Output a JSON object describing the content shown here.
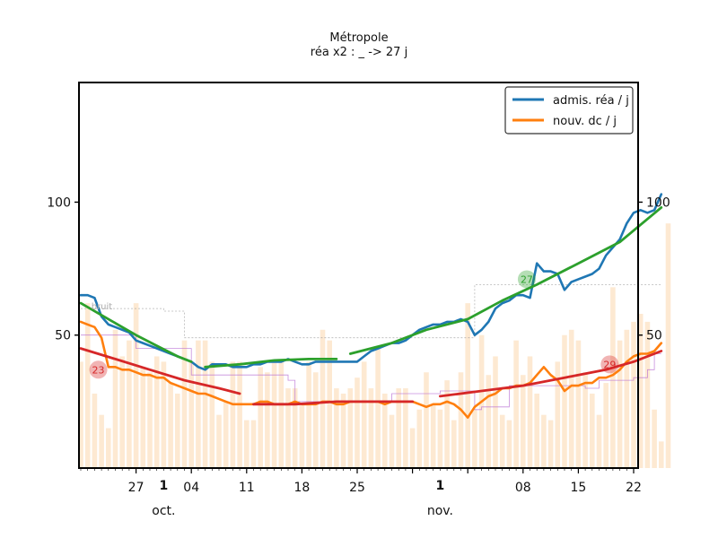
{
  "chart_data": {
    "type": "line",
    "title": "Métropole",
    "subtitle": "réa x2 : _ -> 27 j",
    "ylim": [
      0,
      145
    ],
    "yticks": [
      50,
      100
    ],
    "ytick_labels": [
      "50",
      "100"
    ],
    "xtick_labels": [
      "27",
      "04",
      "11",
      "18",
      "25",
      "08",
      "15",
      "22"
    ],
    "month_labels": [
      "oct.",
      "nov."
    ],
    "month_marks": [
      "1",
      "1"
    ],
    "legend": {
      "placement": "top-right",
      "entries": [
        {
          "label": "admis. réa / j",
          "color": "#1f77b4"
        },
        {
          "label": "nouv. dc / j",
          "color": "#ff7f0e"
        }
      ]
    },
    "annotations": [
      {
        "text": "bruit",
        "color": "#aaaaaa",
        "x": 1,
        "y": 61
      },
      {
        "text": "23",
        "color": "#d62728",
        "x": 1.5,
        "y": 37
      },
      {
        "text": "27",
        "color": "#2ca02c",
        "x": 63.5,
        "y": 71
      },
      {
        "text": "29",
        "color": "#d62728",
        "x": 75.5,
        "y": 39
      }
    ],
    "bars": {
      "color": "#fde9d2",
      "values": [
        40,
        62,
        28,
        20,
        15,
        52,
        42,
        48,
        62,
        38,
        36,
        42,
        40,
        32,
        28,
        48,
        40,
        48,
        48,
        40,
        20,
        25,
        40,
        40,
        18,
        18,
        38,
        36,
        40,
        40,
        30,
        30,
        24,
        40,
        36,
        52,
        48,
        30,
        28,
        30,
        34,
        40,
        30,
        45,
        28,
        20,
        30,
        30,
        15,
        22,
        36,
        24,
        22,
        33,
        18,
        36,
        62,
        22,
        50,
        35,
        42,
        20,
        18,
        48,
        35,
        42,
        28,
        20,
        18,
        40,
        50,
        52,
        48,
        36,
        28,
        20,
        32,
        68,
        48,
        52,
        55,
        58,
        55,
        22,
        10,
        92
      ]
    },
    "series": [
      {
        "name": "admis. réa / j",
        "color": "#1f77b4",
        "points": [
          [
            0,
            65
          ],
          [
            1,
            65
          ],
          [
            2,
            64
          ],
          [
            3,
            57
          ],
          [
            4,
            54
          ],
          [
            5,
            53
          ],
          [
            6,
            52
          ],
          [
            7,
            51
          ],
          [
            8,
            48
          ],
          [
            9,
            47
          ],
          [
            10,
            46
          ],
          [
            11,
            45
          ],
          [
            12,
            44
          ],
          [
            13,
            43
          ],
          [
            14,
            42
          ],
          [
            15,
            41
          ],
          [
            16,
            40
          ],
          [
            17,
            38
          ],
          [
            18,
            37
          ],
          [
            19,
            39
          ],
          [
            20,
            39
          ],
          [
            21,
            39
          ],
          [
            22,
            38
          ],
          [
            23,
            38
          ],
          [
            24,
            38
          ],
          [
            25,
            39
          ],
          [
            26,
            39
          ],
          [
            27,
            40
          ],
          [
            28,
            40
          ],
          [
            29,
            40
          ],
          [
            30,
            41
          ],
          [
            31,
            40
          ],
          [
            32,
            39
          ],
          [
            33,
            39
          ],
          [
            34,
            40
          ],
          [
            35,
            40
          ],
          [
            36,
            40
          ],
          [
            37,
            40
          ],
          [
            38,
            40
          ],
          [
            39,
            40
          ],
          [
            40,
            40
          ],
          [
            41,
            42
          ],
          [
            42,
            44
          ],
          [
            43,
            45
          ],
          [
            44,
            46
          ],
          [
            45,
            47
          ],
          [
            46,
            47
          ],
          [
            47,
            48
          ],
          [
            48,
            50
          ],
          [
            49,
            52
          ],
          [
            50,
            53
          ],
          [
            51,
            54
          ],
          [
            52,
            54
          ],
          [
            53,
            55
          ],
          [
            54,
            55
          ],
          [
            55,
            56
          ],
          [
            56,
            55
          ],
          [
            57,
            50
          ],
          [
            58,
            52
          ],
          [
            59,
            55
          ],
          [
            60,
            60
          ],
          [
            61,
            62
          ],
          [
            62,
            63
          ],
          [
            63,
            65
          ],
          [
            64,
            65
          ],
          [
            65,
            64
          ],
          [
            66,
            77
          ],
          [
            67,
            74
          ],
          [
            68,
            74
          ],
          [
            69,
            73
          ],
          [
            70,
            67
          ],
          [
            71,
            70
          ],
          [
            72,
            71
          ],
          [
            73,
            72
          ],
          [
            74,
            73
          ],
          [
            75,
            75
          ],
          [
            76,
            80
          ],
          [
            77,
            83
          ],
          [
            78,
            86
          ],
          [
            79,
            92
          ],
          [
            80,
            96
          ],
          [
            81,
            97
          ],
          [
            82,
            96
          ],
          [
            83,
            97
          ],
          [
            84,
            103
          ]
        ]
      },
      {
        "name": "nouv. dc / j",
        "color": "#ff7f0e",
        "points": [
          [
            0,
            55
          ],
          [
            1,
            54
          ],
          [
            2,
            53
          ],
          [
            3,
            49
          ],
          [
            4,
            38
          ],
          [
            5,
            38
          ],
          [
            6,
            37
          ],
          [
            7,
            37
          ],
          [
            8,
            36
          ],
          [
            9,
            35
          ],
          [
            10,
            35
          ],
          [
            11,
            34
          ],
          [
            12,
            34
          ],
          [
            13,
            32
          ],
          [
            14,
            31
          ],
          [
            15,
            30
          ],
          [
            16,
            29
          ],
          [
            17,
            28
          ],
          [
            18,
            28
          ],
          [
            19,
            27
          ],
          [
            20,
            26
          ],
          [
            21,
            25
          ],
          [
            22,
            24
          ],
          [
            23,
            24
          ],
          [
            24,
            24
          ],
          [
            25,
            24
          ],
          [
            26,
            25
          ],
          [
            27,
            25
          ],
          [
            28,
            24
          ],
          [
            29,
            24
          ],
          [
            30,
            24
          ],
          [
            31,
            25
          ],
          [
            32,
            24
          ],
          [
            33,
            24
          ],
          [
            34,
            24
          ],
          [
            35,
            25
          ],
          [
            36,
            25
          ],
          [
            37,
            24
          ],
          [
            38,
            24
          ],
          [
            39,
            25
          ],
          [
            40,
            25
          ],
          [
            41,
            25
          ],
          [
            42,
            25
          ],
          [
            43,
            25
          ],
          [
            44,
            24
          ],
          [
            45,
            25
          ],
          [
            46,
            25
          ],
          [
            47,
            25
          ],
          [
            48,
            25
          ],
          [
            49,
            24
          ],
          [
            50,
            23
          ],
          [
            51,
            24
          ],
          [
            52,
            24
          ],
          [
            53,
            25
          ],
          [
            54,
            24
          ],
          [
            55,
            22
          ],
          [
            56,
            19
          ],
          [
            57,
            23
          ],
          [
            58,
            25
          ],
          [
            59,
            27
          ],
          [
            60,
            28
          ],
          [
            61,
            30
          ],
          [
            62,
            30
          ],
          [
            63,
            31
          ],
          [
            64,
            31
          ],
          [
            65,
            32
          ],
          [
            66,
            35
          ],
          [
            67,
            38
          ],
          [
            68,
            35
          ],
          [
            69,
            33
          ],
          [
            70,
            29
          ],
          [
            71,
            31
          ],
          [
            72,
            31
          ],
          [
            73,
            32
          ],
          [
            74,
            32
          ],
          [
            75,
            34
          ],
          [
            76,
            34
          ],
          [
            77,
            35
          ],
          [
            78,
            37
          ],
          [
            79,
            40
          ],
          [
            80,
            42
          ],
          [
            81,
            43
          ],
          [
            82,
            43
          ],
          [
            83,
            44
          ],
          [
            84,
            47
          ]
        ]
      }
    ],
    "trend_lines": [
      {
        "color": "#2ca02c",
        "points": [
          [
            0,
            62
          ],
          [
            4,
            56
          ],
          [
            8,
            50
          ],
          [
            11,
            46
          ],
          [
            14,
            42
          ],
          [
            16,
            40
          ]
        ]
      },
      {
        "color": "#2ca02c",
        "points": [
          [
            18,
            38
          ],
          [
            23,
            39
          ],
          [
            28,
            40.5
          ],
          [
            33,
            41
          ],
          [
            37,
            41
          ]
        ]
      },
      {
        "color": "#2ca02c",
        "points": [
          [
            39,
            43
          ],
          [
            45,
            47
          ],
          [
            50,
            52
          ],
          [
            56,
            56
          ],
          [
            61,
            63
          ],
          [
            66,
            69
          ],
          [
            72,
            77
          ],
          [
            78,
            85
          ],
          [
            84,
            98
          ]
        ]
      },
      {
        "color": "#d62728",
        "points": [
          [
            0,
            45
          ],
          [
            5,
            41
          ],
          [
            10,
            37
          ],
          [
            15,
            33
          ],
          [
            20,
            30
          ],
          [
            23,
            28
          ]
        ]
      },
      {
        "color": "#d62728",
        "points": [
          [
            25,
            24
          ],
          [
            31,
            24
          ],
          [
            37,
            25
          ],
          [
            43,
            25
          ],
          [
            48,
            25
          ]
        ]
      },
      {
        "color": "#d62728",
        "points": [
          [
            52,
            27
          ],
          [
            58,
            29
          ],
          [
            64,
            31
          ],
          [
            70,
            34
          ],
          [
            76,
            37
          ],
          [
            80,
            40
          ],
          [
            84,
            44
          ]
        ]
      }
    ],
    "noise_steps": [
      {
        "color": "#999999",
        "points": [
          [
            0,
            60
          ],
          [
            12,
            60
          ],
          [
            12,
            59
          ],
          [
            15,
            59
          ],
          [
            15,
            49
          ],
          [
            57,
            49
          ],
          [
            57,
            69
          ],
          [
            84,
            69
          ]
        ]
      },
      {
        "color": "#b05fd0",
        "points": [
          [
            0,
            50
          ],
          [
            8,
            50
          ],
          [
            8,
            45
          ],
          [
            16,
            45
          ],
          [
            16,
            35
          ],
          [
            30,
            35
          ],
          [
            30,
            33
          ],
          [
            31,
            33
          ],
          [
            31,
            25
          ],
          [
            45,
            25
          ],
          [
            45,
            28
          ],
          [
            52,
            28
          ],
          [
            52,
            29
          ],
          [
            57,
            29
          ],
          [
            57,
            22
          ],
          [
            58,
            22
          ],
          [
            58,
            23
          ],
          [
            62,
            23
          ],
          [
            62,
            31
          ],
          [
            73,
            31
          ],
          [
            73,
            30
          ],
          [
            75,
            30
          ],
          [
            75,
            33
          ],
          [
            80,
            33
          ],
          [
            80,
            34
          ],
          [
            82,
            34
          ],
          [
            82,
            37
          ],
          [
            83,
            37
          ],
          [
            83,
            43
          ],
          [
            84,
            43
          ]
        ]
      }
    ]
  }
}
